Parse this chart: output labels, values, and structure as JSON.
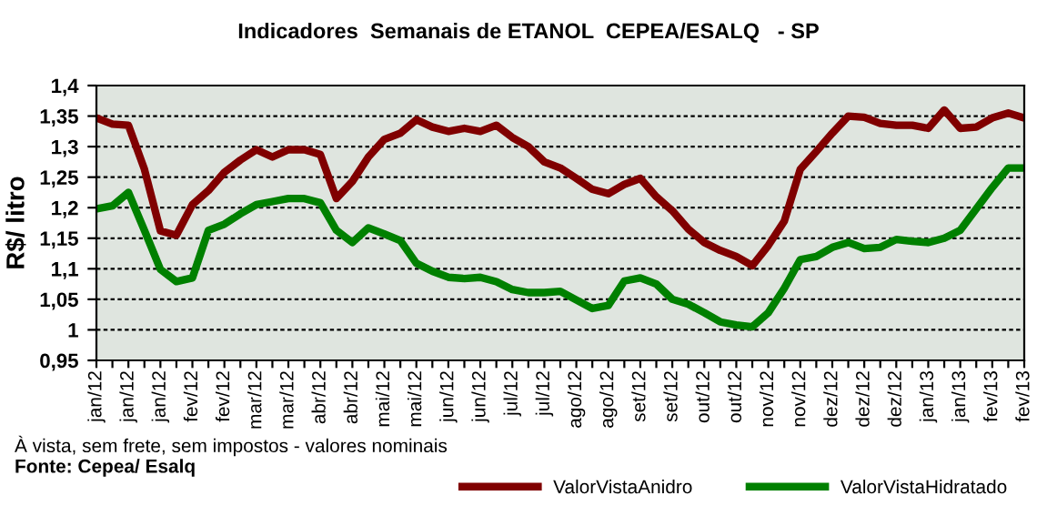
{
  "chart_data": {
    "type": "line",
    "title": "Indicadores  Semanais de ETANOL  CEPEA/ESALQ   - SP",
    "ylabel": "R$/ litro",
    "categories": [
      "jan/12",
      null,
      "jan/12",
      null,
      "jan/12",
      null,
      "fev/12",
      null,
      "fev/12",
      null,
      "mar/12",
      null,
      "mar/12",
      null,
      "abr/12",
      null,
      "abr/12",
      null,
      "mai/12",
      null,
      "mai/12",
      null,
      "jun/12",
      null,
      "jun/12",
      null,
      "jul/12",
      null,
      "jul/12",
      null,
      "ago/12",
      null,
      "ago/12",
      null,
      "set/12",
      null,
      "set/12",
      null,
      "out/12",
      null,
      "out/12",
      null,
      "nov/12",
      null,
      "nov/12",
      null,
      "dez/12",
      null,
      "dez/12",
      null,
      "dez/12",
      null,
      "jan/13",
      null,
      "jan/13",
      null,
      "fev/13",
      null,
      "fev/13"
    ],
    "series": [
      {
        "name": "ValorVistaAnidro",
        "color": "#800000",
        "values": [
          1.347,
          1.337,
          1.335,
          1.263,
          1.162,
          1.155,
          1.205,
          1.228,
          1.258,
          1.278,
          1.295,
          1.283,
          1.295,
          1.295,
          1.287,
          1.215,
          1.243,
          1.283,
          1.312,
          1.322,
          1.344,
          1.332,
          1.325,
          1.33,
          1.325,
          1.335,
          1.315,
          1.3,
          1.275,
          1.265,
          1.248,
          1.23,
          1.223,
          1.238,
          1.248,
          1.218,
          1.195,
          1.165,
          1.143,
          1.13,
          1.12,
          1.105,
          1.138,
          1.178,
          1.263,
          1.292,
          1.322,
          1.35,
          1.348,
          1.338,
          1.335,
          1.335,
          1.33,
          1.36,
          1.33,
          1.332,
          1.347,
          1.355,
          1.347
        ]
      },
      {
        "name": "ValorVistaHidratado",
        "color": "#008000",
        "values": [
          1.198,
          1.203,
          1.225,
          1.163,
          1.099,
          1.079,
          1.085,
          1.163,
          1.173,
          1.19,
          1.205,
          1.21,
          1.215,
          1.215,
          1.208,
          1.163,
          1.143,
          1.167,
          1.157,
          1.146,
          1.109,
          1.096,
          1.086,
          1.084,
          1.086,
          1.079,
          1.066,
          1.061,
          1.061,
          1.063,
          1.049,
          1.035,
          1.04,
          1.08,
          1.085,
          1.075,
          1.05,
          1.042,
          1.028,
          1.013,
          1.008,
          1.005,
          1.028,
          1.068,
          1.115,
          1.12,
          1.135,
          1.143,
          1.133,
          1.135,
          1.148,
          1.145,
          1.143,
          1.15,
          1.163,
          1.198,
          1.233,
          1.265,
          1.265
        ]
      }
    ],
    "ylim": [
      0.95,
      1.4
    ],
    "yticks": [
      {
        "value": 0.95,
        "label": "0,95"
      },
      {
        "value": 1,
        "label": "1"
      },
      {
        "value": 1.05,
        "label": "1,05"
      },
      {
        "value": 1.1,
        "label": "1,1"
      },
      {
        "value": 1.15,
        "label": "1,15"
      },
      {
        "value": 1.2,
        "label": "1,2"
      },
      {
        "value": 1.25,
        "label": "1,25"
      },
      {
        "value": 1.3,
        "label": "1,3"
      },
      {
        "value": 1.35,
        "label": "1,35"
      },
      {
        "value": 1.4,
        "label": "1,4"
      }
    ],
    "grid": "y",
    "legend": "bottom right",
    "marker": "none",
    "line_style": "solid",
    "annotations": [
      "À vista, sem frete, sem impostos - valores nominais",
      "Fonte: Cepea/ Esalq"
    ]
  }
}
